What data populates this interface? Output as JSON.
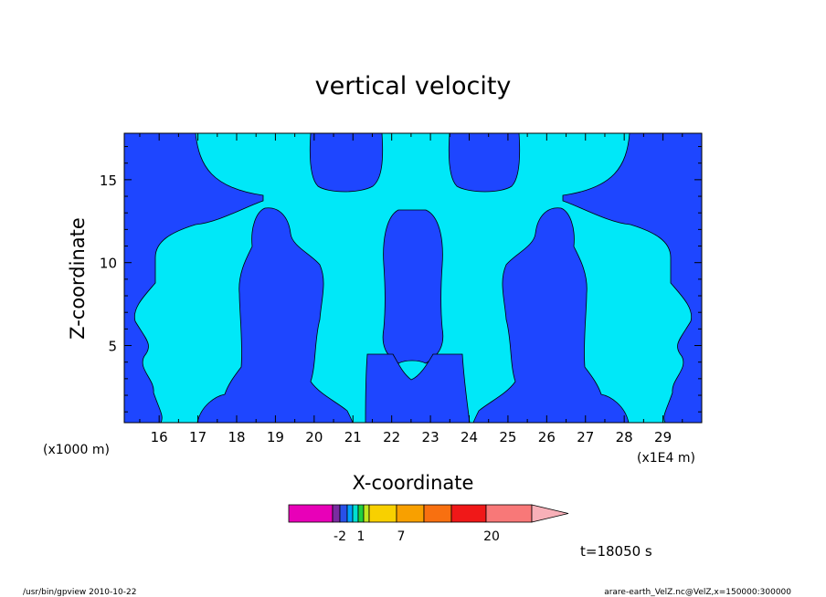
{
  "chart_data": {
    "type": "heatmap",
    "title": "vertical velocity",
    "xlabel": "X-coordinate",
    "ylabel": "Z-coordinate",
    "x_scale_note": "(x1E4 m)",
    "unit_note": "(x1000 m)",
    "xlim": [
      15.1,
      30
    ],
    "ylim": [
      0.35,
      17.8
    ],
    "x_ticks": [
      16,
      17,
      18,
      19,
      20,
      21,
      22,
      23,
      24,
      25,
      26,
      27,
      28,
      29
    ],
    "y_ticks": [
      5,
      10,
      15
    ],
    "fields": {
      "background_color": "#00e8f8",
      "downdraft_color": "#1e46ff"
    },
    "colorbar": {
      "colors": [
        "#e800b8",
        "#7a2ca0",
        "#2850e8",
        "#00a0ff",
        "#00e0d0",
        "#20d040",
        "#c0e820",
        "#f8d000",
        "#f8a000",
        "#f87010",
        "#f01818",
        "#f87878",
        "#f8b0b8"
      ],
      "labels": [
        {
          "value": "-2",
          "pos": 0.69
        },
        {
          "value": "1",
          "pos": 0.97
        },
        {
          "value": "7",
          "pos": 1.5
        },
        {
          "value": "20",
          "pos": 2.7
        }
      ]
    },
    "time_label": "t=18050 s"
  },
  "footer": {
    "left": "/usr/bin/gpview   2010-10-22",
    "right": "arare-earth_VelZ.nc@VelZ,x=150000:300000"
  }
}
